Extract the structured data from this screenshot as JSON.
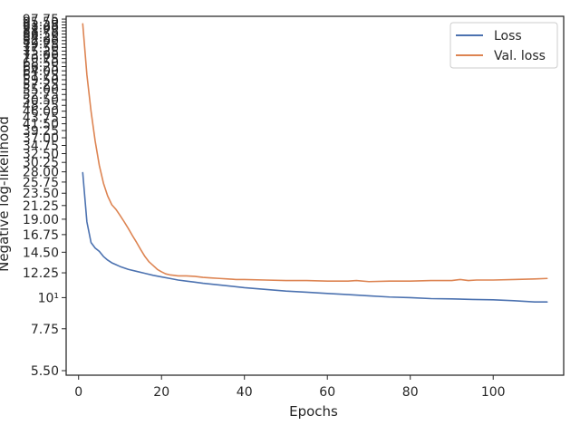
{
  "chart_data": {
    "type": "line",
    "xlabel": "Epochs",
    "ylabel": "Negative log-likelihood",
    "y_scale": "log",
    "xlim": [
      -3,
      117
    ],
    "ylim": [
      5.3,
      100
    ],
    "x_ticks": [
      0,
      20,
      40,
      60,
      80,
      100
    ],
    "x_tick_labels": [
      "0",
      "20",
      "40",
      "60",
      "80",
      "100"
    ],
    "y_ticks": [
      5.5,
      7.75,
      10,
      12.25,
      14.5,
      16.75,
      19,
      21.25,
      23.5,
      25.75,
      28,
      30.25,
      32.5,
      34.75,
      37,
      39.25,
      41.5,
      43.75,
      46,
      48.25,
      50.5,
      52.75,
      55,
      57.25,
      59.5,
      61.75,
      64,
      66.25,
      68.5,
      70.75,
      73,
      75.25,
      77.5,
      79.75,
      82,
      84.25,
      86.5,
      88.75,
      91,
      93.25,
      95.5,
      97.75
    ],
    "y_tick_labels": [
      "5.50",
      "7.75",
      "10¹",
      "12.25",
      "14.50",
      "16.75",
      "19.00",
      "21.25",
      "23.50",
      "25.75",
      "28.00",
      "30.25",
      "32.50",
      "34.75",
      "37.00",
      "39.25",
      "41.50",
      "43.75",
      "46.00",
      "48.25",
      "50.50",
      "52.75",
      "55.00",
      "57.25",
      "59.50",
      "61.75",
      "64.00",
      "66.25",
      "68.50",
      "70.75",
      "73.00",
      "75.25",
      "77.50",
      "79.75",
      "82.00",
      "84.25",
      "86.50",
      "88.75",
      "91.00",
      "93.25",
      "95.50",
      "97.75"
    ],
    "grid": false,
    "legend_position": "top-right",
    "series": [
      {
        "name": "Loss",
        "color": "#4c72b0",
        "x": [
          1,
          2,
          3,
          4,
          5,
          6,
          7,
          8,
          9,
          10,
          12,
          14,
          16,
          18,
          20,
          22,
          24,
          26,
          28,
          30,
          35,
          40,
          45,
          50,
          55,
          60,
          65,
          70,
          75,
          80,
          85,
          90,
          95,
          100,
          105,
          110,
          113
        ],
        "y": [
          27.8,
          18.6,
          15.7,
          15.0,
          14.6,
          14.0,
          13.6,
          13.3,
          13.1,
          12.9,
          12.6,
          12.4,
          12.2,
          12.0,
          11.85,
          11.7,
          11.55,
          11.45,
          11.35,
          11.25,
          11.05,
          10.85,
          10.7,
          10.55,
          10.45,
          10.35,
          10.25,
          10.15,
          10.05,
          10.0,
          9.92,
          9.9,
          9.85,
          9.82,
          9.75,
          9.65,
          9.65
        ]
      },
      {
        "name": "Val. loss",
        "color": "#dd8452",
        "x": [
          1,
          2,
          3,
          4,
          5,
          6,
          7,
          8,
          9,
          10,
          11,
          12,
          13,
          14,
          15,
          16,
          17,
          18,
          19,
          20,
          21,
          22,
          23,
          24,
          26,
          28,
          30,
          32,
          34,
          36,
          38,
          40,
          45,
          50,
          55,
          60,
          65,
          67,
          70,
          75,
          80,
          85,
          90,
          92,
          94,
          96,
          100,
          105,
          110,
          113
        ],
        "y": [
          94.0,
          62.0,
          46.0,
          36.0,
          29.5,
          25.5,
          23.0,
          21.4,
          20.6,
          19.6,
          18.6,
          17.6,
          16.6,
          15.7,
          14.8,
          14.0,
          13.4,
          13.0,
          12.6,
          12.35,
          12.15,
          12.05,
          12.0,
          11.95,
          11.95,
          11.9,
          11.8,
          11.75,
          11.7,
          11.65,
          11.6,
          11.6,
          11.55,
          11.5,
          11.5,
          11.45,
          11.45,
          11.5,
          11.4,
          11.45,
          11.45,
          11.5,
          11.5,
          11.6,
          11.5,
          11.55,
          11.55,
          11.6,
          11.65,
          11.7
        ]
      }
    ]
  }
}
